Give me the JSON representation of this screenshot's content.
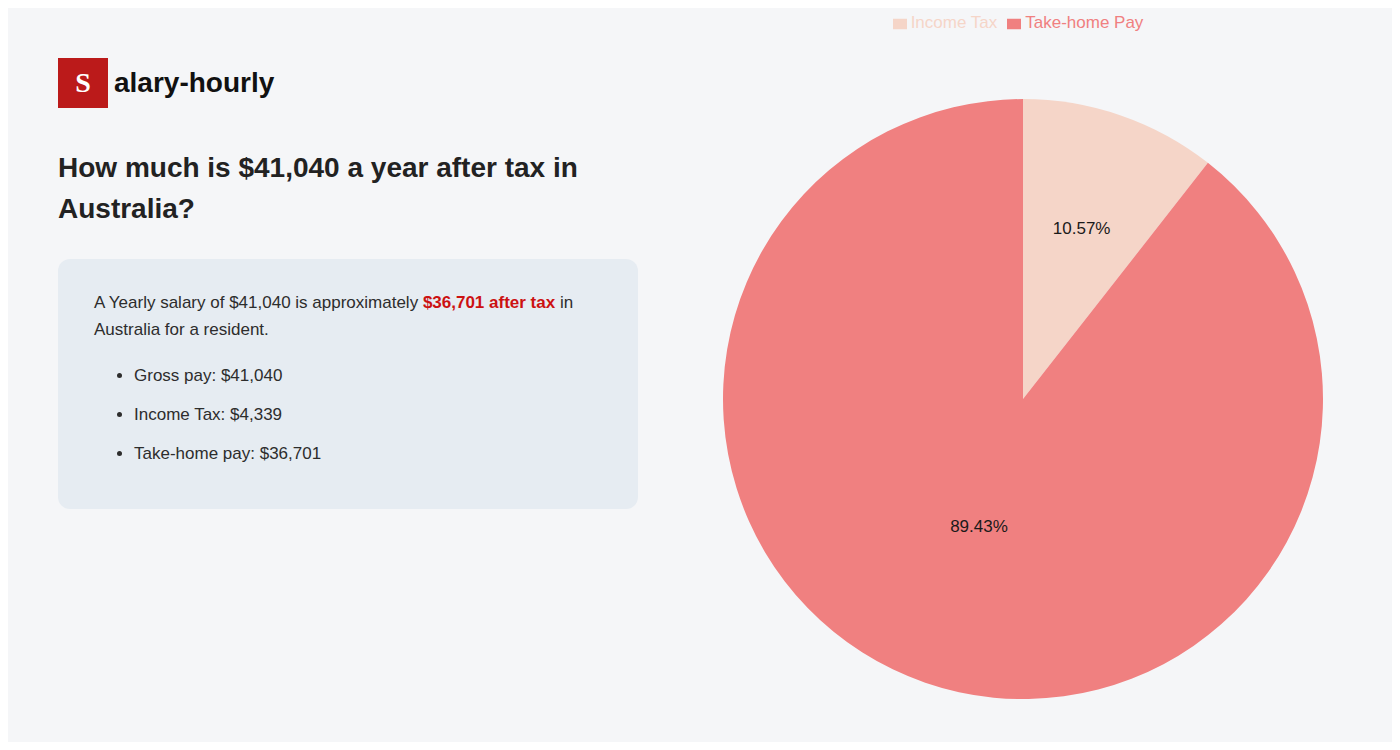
{
  "chart_data": {
    "type": "pie",
    "title": "How much is $41,040 a year after tax in\nAustralia?",
    "categories": [
      "Income Tax",
      "Take-home Pay"
    ],
    "values": [
      10.57,
      89.43
    ],
    "value_labels": [
      "10.57%",
      "89.43%"
    ],
    "colors": [
      "#f5d5c8",
      "#f08080"
    ],
    "data_labels": true,
    "legend": "top",
    "annotations": [
      "S",
      "alary-hourly",
      "A Yearly salary of $41,040 is approximately ",
      "$36,701 after tax",
      " in",
      "Australia for a resident.",
      "Gross pay: $41,040",
      "Income Tax: $4,339",
      "Take-home pay: $36,701"
    ]
  }
}
